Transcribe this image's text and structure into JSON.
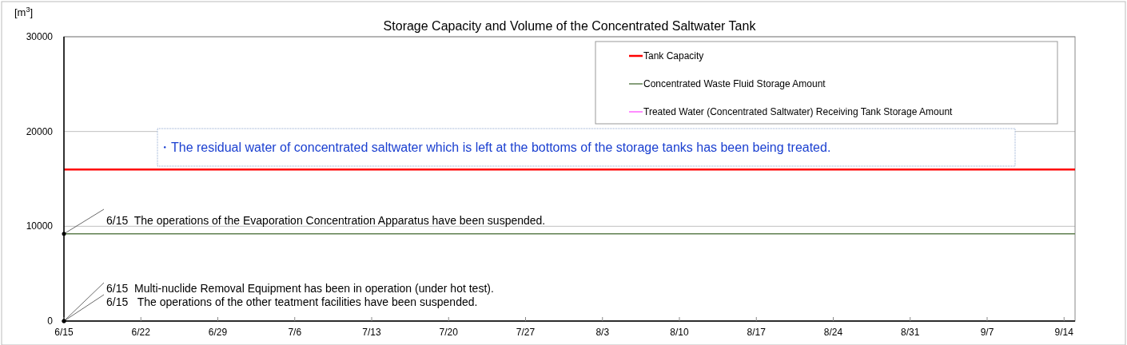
{
  "chart_data": {
    "type": "line",
    "title": "Storage Capacity and Volume of the Concentrated Saltwater Tank",
    "ylabel": "[m$^{3}$]",
    "x": [
      "--06-15",
      "--09-15"
    ],
    "xlim": [
      "--06-15",
      "--09-15"
    ],
    "xticks": [
      {
        "value": "--06-15",
        "label": "6/15"
      },
      {
        "value": "--06-22",
        "label": "6/22"
      },
      {
        "value": "--06-29",
        "label": "6/29"
      },
      {
        "value": "--07-06",
        "label": "7/6"
      },
      {
        "value": "--07-13",
        "label": "7/13"
      },
      {
        "value": "--07-20",
        "label": "7/20"
      },
      {
        "value": "--07-27",
        "label": "7/27"
      },
      {
        "value": "--08-03",
        "label": "8/3"
      },
      {
        "value": "--08-10",
        "label": "8/10"
      },
      {
        "value": "--08-17",
        "label": "8/17"
      },
      {
        "value": "--08-24",
        "label": "8/24"
      },
      {
        "value": "--08-31",
        "label": "8/31"
      },
      {
        "value": "--09-07",
        "label": "9/7"
      },
      {
        "value": "--09-14",
        "label": "9/14"
      }
    ],
    "ylim": [
      0,
      30000
    ],
    "yticks": [
      0,
      10000,
      20000,
      30000
    ],
    "grid": "y",
    "legend": "top right",
    "marker": "none",
    "line_style": "solid",
    "series": [
      {
        "name": "Tank Capacity",
        "color": "#ff0000",
        "values": [
          16000,
          16000
        ]
      },
      {
        "name": "Concentrated Waste Fluid Storage Amount",
        "color": "#5f7f4f",
        "values": [
          9200,
          9200
        ]
      },
      {
        "name": "Treated Water (Concentrated Saltwater) Receiving Tank Storage Amount",
        "color": "#ff66ff",
        "values": [
          null,
          null
        ]
      }
    ],
    "annotations": [
      "・The residual water of concentrated saltwater which is left at the bottoms of the storage tanks has been being treated.",
      {
        "text": "6/15  The operations of the Evaporation Concentration Apparatus have been suspended.",
        "x": "--06-15",
        "y": 9200
      },
      "6/15  Multi-nuclide Removal Equipment has been in operation (under hot test).",
      "6/15   The operations of the other teatment facilities have been suspended."
    ]
  }
}
